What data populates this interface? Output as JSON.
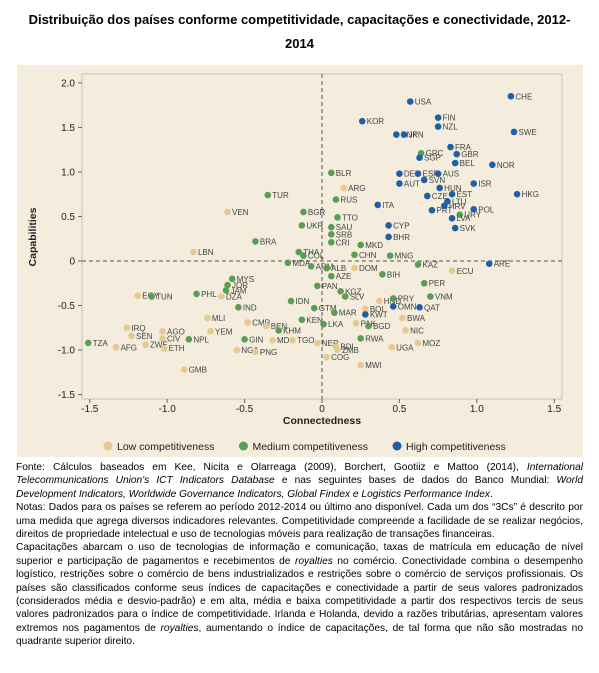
{
  "chart_data": {
    "type": "scatter",
    "title": "Distribuição dos países conforme competitividade, capacitações e conectividade, 2012-2014",
    "x_label": "Connectedness",
    "y_label": "Capabilities",
    "xlim": [
      -1.55,
      1.55
    ],
    "ylim": [
      -1.55,
      2.1
    ],
    "xticks": [
      -1.5,
      {
        "value": -1,
        "label": "-1.0"
      },
      -0.5,
      0,
      0.5,
      {
        "value": 1,
        "label": "1.0"
      },
      1.5
    ],
    "yticks": [
      {
        "value": 2,
        "label": "2.0"
      },
      1.5,
      {
        "value": 1,
        "label": "1.0"
      },
      0.5,
      0,
      -0.5,
      {
        "value": -1,
        "label": "-1.0"
      },
      -1.5
    ],
    "legend": "bottom",
    "series": [
      {
        "name": "Low competitiveness",
        "color": "#e6c98f",
        "labels": [
          "ARG",
          "VEN",
          "LBN",
          "ECU",
          "DOM",
          "EGY",
          "DZA",
          "MLI",
          "HND",
          "BOL",
          "PAK",
          "BWA",
          "NIC",
          "MOZ",
          "UGA",
          "IRQ",
          "SEN",
          "AGO",
          "CIV",
          "ZWE",
          "AFG",
          "ETH",
          "YEM",
          "CMR",
          "BEN",
          "NGA",
          "PNG",
          "MDG",
          "TGO",
          "GMB",
          "NER",
          "BDI",
          "ZMB",
          "COG",
          "MWI"
        ],
        "x": [
          0.14,
          -0.61,
          -0.83,
          0.84,
          0.21,
          -1.19,
          -0.65,
          -0.74,
          0.37,
          0.28,
          0.22,
          0.52,
          0.54,
          0.62,
          0.45,
          -1.26,
          -1.23,
          -1.03,
          -1.03,
          -1.14,
          -1.33,
          -1.02,
          -0.72,
          -0.48,
          -0.36,
          -0.55,
          -0.43,
          -0.32,
          -0.19,
          -0.89,
          -0.03,
          0.09,
          0.1,
          0.03,
          0.25
        ],
        "values": [
          0.82,
          0.55,
          0.1,
          -0.11,
          -0.08,
          -0.39,
          -0.4,
          -0.64,
          -0.45,
          -0.54,
          -0.7,
          -0.64,
          -0.78,
          -0.92,
          -0.97,
          -0.75,
          -0.84,
          -0.79,
          -0.87,
          -0.94,
          -0.97,
          -0.98,
          -0.79,
          -0.69,
          -0.73,
          -1.0,
          -1.02,
          -0.89,
          -0.89,
          -1.22,
          -0.92,
          -0.96,
          -1.0,
          -1.08,
          -1.17
        ]
      },
      {
        "name": "Medium competitiveness",
        "color": "#5a9e55",
        "labels": [
          "GRC",
          "URY",
          "BLR",
          "TUR",
          "RUS",
          "BGR",
          "UKR",
          "TTO",
          "SAU",
          "SRB",
          "CRI",
          "BRA",
          "THA",
          "COL",
          "MKD",
          "CHN",
          "MNG",
          "MDA",
          "ARM",
          "ALB",
          "BIH",
          "KAZ",
          "PER",
          "MYS",
          "JOR",
          "JAM",
          "PHL",
          "TUN",
          "AZE",
          "PAN",
          "KGZ",
          "SLV",
          "IDN",
          "VNM",
          "PRY",
          "GTM",
          "MAR",
          "KEN",
          "LKA",
          "KHM",
          "GIN",
          "BGD",
          "RWA",
          "NPL",
          "TZA",
          "IND"
        ],
        "x": [
          0.64,
          0.89,
          0.06,
          -0.35,
          0.09,
          -0.12,
          -0.13,
          0.1,
          0.06,
          0.06,
          0.06,
          -0.43,
          -0.15,
          -0.12,
          0.25,
          0.21,
          0.44,
          -0.22,
          -0.07,
          0.03,
          0.39,
          0.62,
          0.66,
          -0.58,
          -0.61,
          -0.62,
          -0.81,
          -1.1,
          0.06,
          -0.03,
          0.12,
          0.15,
          -0.2,
          0.7,
          0.46,
          -0.05,
          0.08,
          -0.13,
          0.01,
          -0.28,
          -0.5,
          0.3,
          0.25,
          -0.86,
          -1.51,
          -0.54
        ],
        "values": [
          1.21,
          0.52,
          0.99,
          0.74,
          0.69,
          0.55,
          0.4,
          0.49,
          0.38,
          0.3,
          0.21,
          0.22,
          0.1,
          0.06,
          0.18,
          0.07,
          0.06,
          -0.02,
          -0.06,
          -0.08,
          -0.15,
          -0.04,
          -0.25,
          -0.2,
          -0.27,
          -0.33,
          -0.37,
          -0.4,
          -0.17,
          -0.28,
          -0.34,
          -0.4,
          -0.45,
          -0.4,
          -0.42,
          -0.53,
          -0.58,
          -0.66,
          -0.71,
          -0.78,
          -0.88,
          -0.73,
          -0.87,
          -0.88,
          -0.92,
          -0.52
        ]
      },
      {
        "name": "High competitiveness",
        "color": "#1f5fa8",
        "labels": [
          "USA",
          "CHE",
          "KOR",
          "FIN",
          "NZL",
          "SWE",
          "DNK",
          "JPN",
          "FRA",
          "GBR",
          "SGP",
          "CZE",
          "BEL",
          "NOR",
          "DEU",
          "ESP",
          "AUS",
          "SVN",
          "AUT",
          "ISR",
          "HUN",
          "HKG",
          "EST",
          "LTU",
          "HRV",
          "POL",
          "PRT",
          "ITA",
          "LVA",
          "SVK",
          "CYP",
          "BHR",
          "ARE",
          "OMN",
          "QAT",
          "KWT"
        ],
        "x": [
          0.57,
          1.22,
          0.26,
          0.75,
          0.75,
          1.24,
          0.48,
          0.53,
          0.83,
          0.87,
          0.63,
          0.68,
          0.86,
          1.1,
          0.5,
          0.62,
          0.75,
          0.66,
          0.5,
          0.98,
          0.76,
          1.26,
          0.84,
          0.81,
          0.79,
          0.98,
          0.71,
          0.36,
          0.84,
          0.86,
          0.43,
          0.43,
          1.08,
          0.46,
          0.63,
          0.28
        ],
        "values": [
          1.79,
          1.85,
          1.57,
          1.61,
          1.51,
          1.45,
          1.42,
          1.42,
          1.28,
          1.2,
          1.16,
          0.73,
          1.1,
          1.08,
          0.98,
          0.98,
          0.98,
          0.91,
          0.87,
          0.87,
          0.82,
          0.75,
          0.75,
          0.67,
          0.62,
          0.58,
          0.57,
          0.63,
          0.48,
          0.37,
          0.4,
          0.27,
          -0.03,
          -0.51,
          -0.52,
          -0.6
        ]
      }
    ]
  },
  "notes": {
    "source": [
      {
        "text": "Fonte: Cálculos baseados em Kee, Nicita e Olarreaga (2009), Borchert, Gootiiz e Mattoo (2014), ",
        "italic": false
      },
      {
        "text": "International Telecommunications Union's ICT Indicators Database",
        "italic": true
      },
      {
        "text": " e nas seguintes bases de dados do Banco Mundial: ",
        "italic": false
      },
      {
        "text": "World Development Indicators, Worldwide Governance Indicators, Global Findex e Logistics Performance Index",
        "italic": true
      },
      {
        "text": ".",
        "italic": false
      }
    ],
    "paragraphs": [
      [
        {
          "text": "Notas: Dados para os países se referem ao período 2012-2014 ou último ano disponível. Cada um dos “3Cs” é descrito por uma medida que agrega diversos indicadores relevantes. Competitividade compreende a facilidade de se realizar negócios, direitos de propriedade intelectual e uso de tecnologias móveis para realização de transações financeiras.",
          "italic": false
        }
      ],
      [
        {
          "text": "Capacitações abarcam o uso de tecnologias de informação e comunicação, taxas de matrícula em educação de nível superior e participação de pagamentos e recebimentos de ",
          "italic": false
        },
        {
          "text": "royalties",
          "italic": true
        },
        {
          "text": " no comércio. Conectividade combina o desempenho logístico, restrições sobre o comércio de bens industrializados e restrições sobre o comércio de serviços profissionais. Os países são classificados conforme seus índices de capacitações e conectividade a partir de seus valores padronizados (considerados média e desvio-padrão) e em alta, média e baixa competitividade a partir dos respectivos tercis de seus valores padronizados para o índice de competitividade. Irlanda e Holanda, devido a razões tributárias, apresentam valores extremos nos pagamentos de ",
          "italic": false
        },
        {
          "text": "royalties",
          "italic": true
        },
        {
          "text": ", aumentando o índice de capacitações, de tal forma que não são mostradas no quadrante superior direito.",
          "italic": false
        }
      ]
    ]
  }
}
